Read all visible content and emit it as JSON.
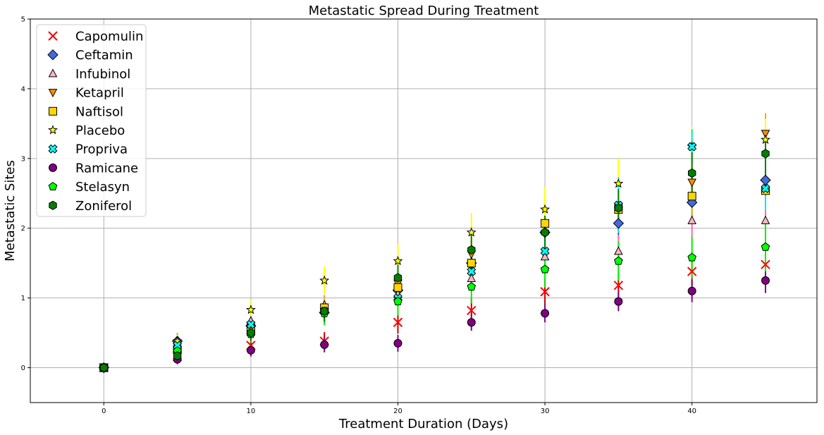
{
  "chart_data": {
    "type": "scatter",
    "title": "Metastatic Spread During Treatment",
    "xlabel": "Treatment Duration (Days)",
    "ylabel": "Metastatic Sites",
    "xlim": [
      -5,
      48.5
    ],
    "ylim": [
      -0.5,
      5
    ],
    "xticks": [
      0,
      10,
      20,
      30,
      40
    ],
    "yticks": [
      0,
      1,
      2,
      3,
      4,
      5
    ],
    "grid": true,
    "legend_position": "top-left",
    "x": [
      0,
      5,
      10,
      15,
      20,
      25,
      30,
      35,
      40,
      45
    ],
    "series": [
      {
        "name": "Capomulin",
        "marker": "x",
        "color": "#ff0000",
        "errcolor": "#c00000",
        "values": [
          0,
          0.16,
          0.32,
          0.38,
          0.65,
          0.82,
          1.09,
          1.18,
          1.38,
          1.48
        ],
        "errors": [
          0,
          0.07,
          0.12,
          0.13,
          0.16,
          0.18,
          0.19,
          0.2,
          0.2,
          0.2
        ]
      },
      {
        "name": "Ceftamin",
        "marker": "D",
        "color": "#4169e1",
        "errcolor": "#1e3fa0",
        "values": [
          0,
          0.38,
          0.6,
          0.79,
          1.11,
          1.5,
          1.94,
          2.07,
          2.37,
          2.69
        ],
        "errors": [
          0,
          0.11,
          0.12,
          0.13,
          0.17,
          0.18,
          0.2,
          0.22,
          0.25,
          0.28
        ]
      },
      {
        "name": "Infubinol",
        "marker": "^",
        "color": "#ffb6c1",
        "errcolor": "#ff69b4",
        "values": [
          0,
          0.28,
          0.67,
          0.9,
          1.05,
          1.28,
          1.59,
          1.67,
          2.11,
          2.11
        ],
        "errors": [
          0,
          0.1,
          0.12,
          0.14,
          0.17,
          0.19,
          0.24,
          0.24,
          0.25,
          0.26
        ]
      },
      {
        "name": "Ketapril",
        "marker": "v",
        "color": "#ff8c00",
        "errcolor": "#ffa500",
        "values": [
          0,
          0.3,
          0.61,
          0.84,
          1.21,
          1.63,
          2.06,
          2.3,
          2.66,
          3.36
        ],
        "errors": [
          0,
          0.1,
          0.12,
          0.13,
          0.17,
          0.19,
          0.23,
          0.27,
          0.27,
          0.29
        ]
      },
      {
        "name": "Naftisol",
        "marker": "s",
        "color": "#ffd700",
        "errcolor": "#e0c000",
        "values": [
          0,
          0.26,
          0.52,
          0.86,
          1.15,
          1.5,
          2.07,
          2.27,
          2.46,
          2.54
        ],
        "errors": [
          0,
          0.1,
          0.12,
          0.15,
          0.18,
          0.2,
          0.22,
          0.24,
          0.27,
          0.28
        ]
      },
      {
        "name": "Placebo",
        "marker": "*",
        "color": "#ffff00",
        "errcolor": "#ffff00",
        "values": [
          0,
          0.38,
          0.83,
          1.25,
          1.53,
          1.94,
          2.27,
          2.64,
          3.17,
          3.27
        ],
        "errors": [
          0,
          0.1,
          0.13,
          0.2,
          0.24,
          0.28,
          0.32,
          0.36,
          0.28,
          0.3
        ]
      },
      {
        "name": "Propriva",
        "marker": "X",
        "color": "#00ffff",
        "errcolor": "#00e5e5",
        "values": [
          0,
          0.32,
          0.62,
          0.81,
          1.0,
          1.38,
          1.67,
          2.33,
          3.17,
          2.57
        ],
        "errors": [
          0,
          0.1,
          0.12,
          0.14,
          0.16,
          0.2,
          0.24,
          0.4,
          0.25,
          0.3
        ]
      },
      {
        "name": "Ramicane",
        "marker": "o",
        "color": "#800080",
        "errcolor": "#800080",
        "values": [
          0,
          0.12,
          0.25,
          0.33,
          0.35,
          0.65,
          0.78,
          0.95,
          1.1,
          1.25
        ],
        "errors": [
          0,
          0.07,
          0.09,
          0.11,
          0.12,
          0.12,
          0.13,
          0.14,
          0.16,
          0.18
        ]
      },
      {
        "name": "Stelasyn",
        "marker": "p",
        "color": "#00ff00",
        "errcolor": "#00ee00",
        "values": [
          0,
          0.24,
          0.48,
          0.78,
          0.95,
          1.16,
          1.41,
          1.53,
          1.58,
          1.73
        ],
        "errors": [
          0,
          0.1,
          0.12,
          0.17,
          0.2,
          0.24,
          0.26,
          0.28,
          0.3,
          0.35
        ]
      },
      {
        "name": "Zoniferol",
        "marker": "h",
        "color": "#008000",
        "errcolor": "#008000",
        "values": [
          0,
          0.17,
          0.5,
          0.81,
          1.29,
          1.69,
          1.94,
          2.29,
          2.79,
          3.07
        ],
        "errors": [
          0,
          0.09,
          0.12,
          0.15,
          0.19,
          0.22,
          0.24,
          0.27,
          0.3,
          0.33
        ]
      }
    ]
  }
}
